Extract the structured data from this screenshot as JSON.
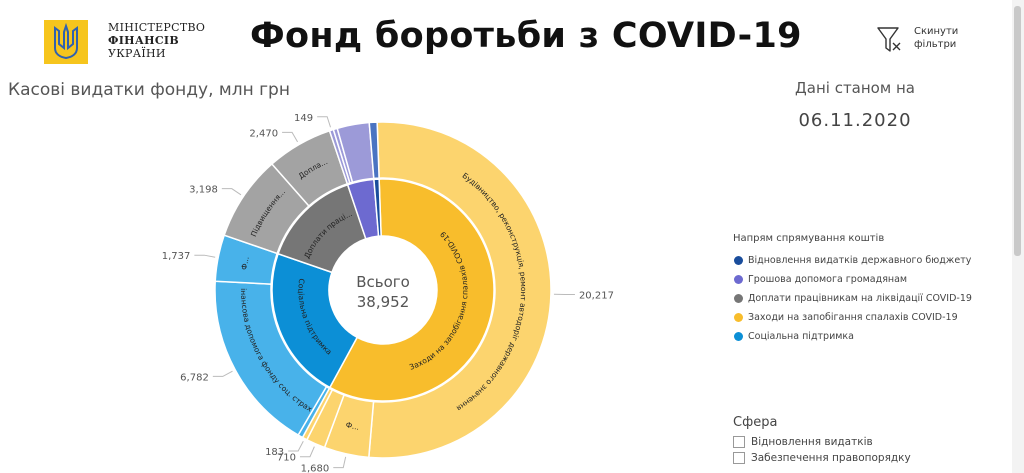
{
  "header": {
    "ministry_lines": [
      "МІНІСТЕРСТВО",
      "ФІНАНСІВ",
      "УКРАЇНИ"
    ],
    "title": "Фонд боротьби з COVID-19",
    "reset_label": [
      "Скинути",
      "фільтри"
    ],
    "reset_icon": "filter-clear-icon"
  },
  "chart_title": "Касові видатки фонду, млн грн",
  "as_of": {
    "label": "Дані станом на",
    "date": "06.11.2020"
  },
  "center": {
    "label": "Всього",
    "total": "38,952"
  },
  "chart_data": {
    "type": "sunburst",
    "title": "Касові видатки фонду, млн грн",
    "total": 38952,
    "inner": [
      {
        "name": "Заходи на запобігання спалахів COVID-19",
        "value": 22790,
        "color": "#f8bd2c",
        "label": "Заходи на запобігання спалахів COVID-19"
      },
      {
        "name": "Соціальна підтримка",
        "value": 8702,
        "color": "#0c8fd6",
        "label": "Соціальна підтримка"
      },
      {
        "name": "Доплати працівникам на ліквідації COVID-19",
        "value": 5668,
        "color": "#767676",
        "label": "Доплати праці..."
      },
      {
        "name": "Грошова допомога громадянам",
        "value": 1500,
        "color": "#6d6ad0",
        "label": ""
      },
      {
        "name": "Відновлення видатків державного бюджету",
        "value": 292,
        "color": "#1a4d9c",
        "label": ""
      }
    ],
    "outer": [
      {
        "value": 20217,
        "color": "#fcd46e",
        "label": "Будівництво, реконструкція, ремонт автодоріг державного значення",
        "value_label": "20,217"
      },
      {
        "value": 1680,
        "color": "#fcd46e",
        "label": "Ф...",
        "value_label": "1,680"
      },
      {
        "value": 710,
        "color": "#fcd46e",
        "label": "",
        "value_label": "710"
      },
      {
        "value": 183,
        "color": "#fcd46e",
        "label": "",
        "value_label": "183"
      },
      {
        "value": 183,
        "color": "#48b2ea",
        "label": "",
        "value_label": ""
      },
      {
        "value": 6782,
        "color": "#48b2ea",
        "label": "Фінансова допомога фонду соц. страх.",
        "value_label": "6,782"
      },
      {
        "value": 1737,
        "color": "#48b2ea",
        "label": "Ф...",
        "value_label": "1,737"
      },
      {
        "value": 3198,
        "color": "#a3a3a3",
        "label": "Підвищення...",
        "value_label": "3,198"
      },
      {
        "value": 2470,
        "color": "#a3a3a3",
        "label": "Допла...",
        "value_label": "2,470"
      },
      {
        "value": 149,
        "color": "#9c9ad8",
        "label": "",
        "value_label": "149"
      },
      {
        "value": 149,
        "color": "#9c9ad8",
        "label": "",
        "value_label": ""
      },
      {
        "value": 1202,
        "color": "#9c9ad8",
        "label": "",
        "value_label": ""
      },
      {
        "value": 292,
        "color": "#4a74c2",
        "label": "",
        "value_label": ""
      }
    ]
  },
  "legend": {
    "title": "Напрям спрямування коштів",
    "items": [
      {
        "label": "Відновлення видатків державного бюджету",
        "color": "#1a4d9c"
      },
      {
        "label": "Грошова допомога громадянам",
        "color": "#6d6ad0"
      },
      {
        "label": "Доплати працівникам на ліквідації COVID-19",
        "color": "#767676"
      },
      {
        "label": "Заходи на запобігання спалахів COVID-19",
        "color": "#f8bd2c"
      },
      {
        "label": "Соціальна підтримка",
        "color": "#0c8fd6"
      }
    ]
  },
  "sphere": {
    "title": "Сфера",
    "items": [
      "Відновлення видатків",
      "Забезпечення правопорядку"
    ]
  }
}
